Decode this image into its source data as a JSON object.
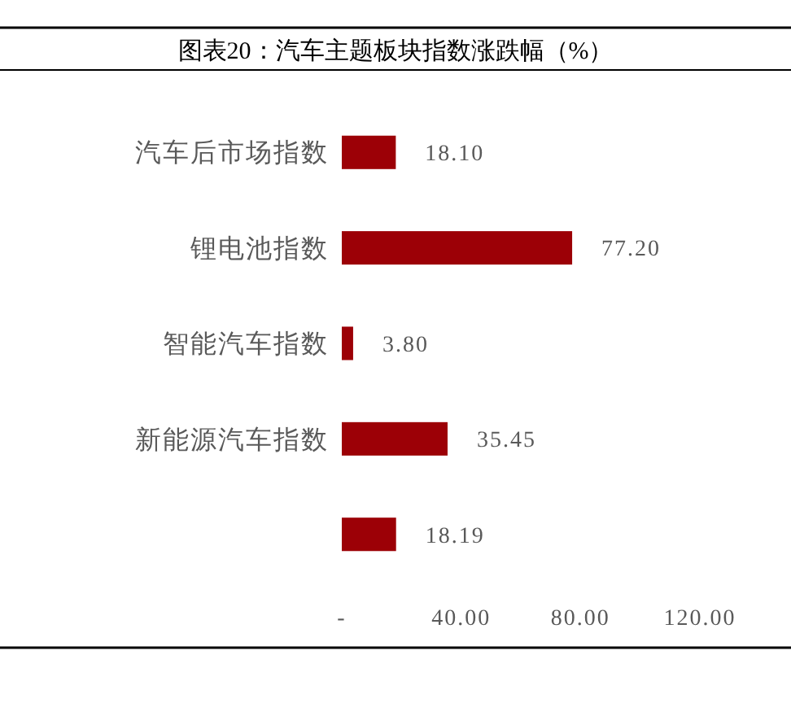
{
  "chart_data": {
    "type": "bar",
    "orientation": "horizontal",
    "title": "图表20：汽车主题板块指数涨跌幅（%）",
    "categories": [
      "汽车后市场指数",
      "锂电池指数",
      "智能汽车指数",
      "新能源汽车指数",
      null
    ],
    "values": [
      18.1,
      77.2,
      3.8,
      35.45,
      18.19
    ],
    "value_labels": [
      "18.10",
      "77.20",
      "3.80",
      "35.45",
      "18.19"
    ],
    "color": "#9c0006",
    "xlim": [
      0,
      120
    ],
    "xticks": [
      {
        "value": 0,
        "label": "-"
      },
      {
        "value": 40,
        "label": "40.00"
      },
      {
        "value": 80,
        "label": "80.00"
      },
      {
        "value": 120,
        "label": "120.00"
      }
    ],
    "grid": false
  }
}
